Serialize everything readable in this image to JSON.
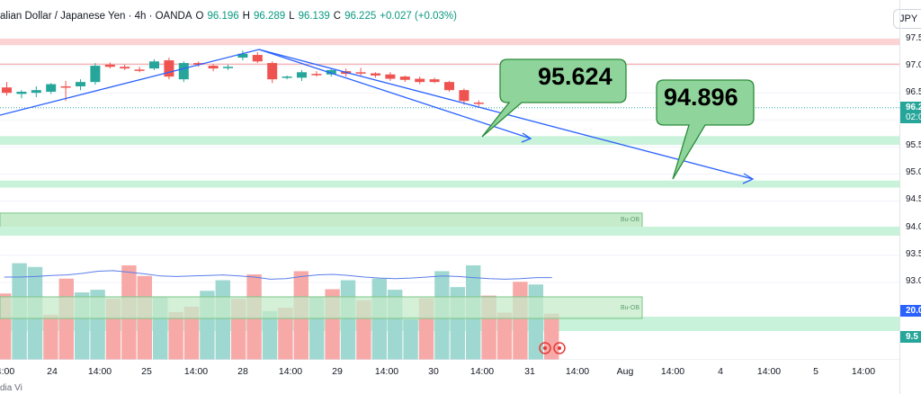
{
  "header": {
    "symbol": "alian Dollar / Japanese Yen · 4h · OANDA",
    "o_label": "O",
    "o_value": "96.196",
    "h_label": "H",
    "h_value": "96.289",
    "l_label": "L",
    "l_value": "96.139",
    "c_label": "C",
    "c_value": "96.225",
    "change": "+0.027 (+0.03%)"
  },
  "currency_tab": "JPY",
  "colors": {
    "up": "#26a69a",
    "down": "#ef5350",
    "trend": "#2962ff",
    "zone": "#a9e9c4",
    "box": "#8fd49a",
    "resistance": "#f7b6b6"
  },
  "price_axis": {
    "ticks": [
      "97.5",
      "97.0",
      "96.5",
      "96.2",
      "95.5",
      "95.0",
      "94.5",
      "94.0",
      "93.5",
      "93.0",
      "20.0",
      "9.5"
    ],
    "badges": [
      {
        "text": "96.2",
        "sub": "02:0",
        "color": "#26a69a"
      },
      {
        "text": "20.0",
        "color": "#2962ff"
      },
      {
        "text": "9.5",
        "color": "#26a69a"
      }
    ]
  },
  "time_axis": [
    "4:00",
    "24",
    "14:00",
    "25",
    "14:00",
    "28",
    "14:00",
    "29",
    "14:00",
    "30",
    "14:00",
    "31",
    "14:00",
    "Aug",
    "14:00",
    "4",
    "14:00",
    "5",
    "14:00"
  ],
  "callouts": [
    {
      "text": "95.624"
    },
    {
      "text": "94.896"
    }
  ],
  "zone_labels": [
    "Bu-OB",
    "Bu-OB"
  ],
  "bottom_text": "dia Vi",
  "chart_data": {
    "type": "candlestick",
    "timeframe": "4h",
    "candles": [
      {
        "o": 96.6,
        "h": 96.7,
        "l": 96.45,
        "c": 96.5
      },
      {
        "o": 96.48,
        "h": 96.55,
        "l": 96.4,
        "c": 96.52
      },
      {
        "o": 96.5,
        "h": 96.62,
        "l": 96.42,
        "c": 96.55
      },
      {
        "o": 96.52,
        "h": 96.68,
        "l": 96.48,
        "c": 96.66
      },
      {
        "o": 96.62,
        "h": 96.72,
        "l": 96.35,
        "c": 96.6
      },
      {
        "o": 96.62,
        "h": 96.75,
        "l": 96.55,
        "c": 96.7
      },
      {
        "o": 96.7,
        "h": 97.05,
        "l": 96.65,
        "c": 97.0
      },
      {
        "o": 97.02,
        "h": 97.06,
        "l": 96.95,
        "c": 96.98
      },
      {
        "o": 96.98,
        "h": 97.02,
        "l": 96.92,
        "c": 96.95
      },
      {
        "o": 96.93,
        "h": 96.98,
        "l": 96.88,
        "c": 96.92
      },
      {
        "o": 96.95,
        "h": 97.12,
        "l": 96.92,
        "c": 97.08
      },
      {
        "o": 97.1,
        "h": 97.15,
        "l": 96.75,
        "c": 96.8
      },
      {
        "o": 96.75,
        "h": 97.08,
        "l": 96.7,
        "c": 97.05
      },
      {
        "o": 97.05,
        "h": 97.08,
        "l": 96.98,
        "c": 97.02
      },
      {
        "o": 97.0,
        "h": 97.03,
        "l": 96.9,
        "c": 96.95
      },
      {
        "o": 96.98,
        "h": 97.02,
        "l": 96.92,
        "c": 96.98
      },
      {
        "o": 97.15,
        "h": 97.28,
        "l": 97.1,
        "c": 97.22
      },
      {
        "o": 97.2,
        "h": 97.25,
        "l": 97.05,
        "c": 97.08
      },
      {
        "o": 97.05,
        "h": 97.08,
        "l": 96.68,
        "c": 96.75
      },
      {
        "o": 96.78,
        "h": 96.82,
        "l": 96.75,
        "c": 96.8
      },
      {
        "o": 96.78,
        "h": 96.92,
        "l": 96.72,
        "c": 96.88
      },
      {
        "o": 96.85,
        "h": 96.9,
        "l": 96.8,
        "c": 96.84
      },
      {
        "o": 96.84,
        "h": 96.95,
        "l": 96.8,
        "c": 96.92
      },
      {
        "o": 96.9,
        "h": 96.95,
        "l": 96.8,
        "c": 96.85
      },
      {
        "o": 96.88,
        "h": 96.96,
        "l": 96.82,
        "c": 96.87
      },
      {
        "o": 96.86,
        "h": 96.88,
        "l": 96.78,
        "c": 96.82
      },
      {
        "o": 96.84,
        "h": 96.88,
        "l": 96.72,
        "c": 96.76
      },
      {
        "o": 96.8,
        "h": 96.82,
        "l": 96.7,
        "c": 96.74
      },
      {
        "o": 96.76,
        "h": 96.8,
        "l": 96.66,
        "c": 96.7
      },
      {
        "o": 96.75,
        "h": 96.78,
        "l": 96.68,
        "c": 96.7
      },
      {
        "o": 96.7,
        "h": 96.72,
        "l": 96.52,
        "c": 96.55
      },
      {
        "o": 96.55,
        "h": 96.58,
        "l": 96.28,
        "c": 96.35
      },
      {
        "o": 96.32,
        "h": 96.36,
        "l": 96.25,
        "c": 96.3
      }
    ],
    "volume_left_candles": [
      12.5,
      18.2,
      17.5,
      8.5,
      15.3,
      12.7,
      13.2,
      11.5,
      17.8,
      15.8,
      11.8,
      9.0,
      10.0,
      13.0,
      15.0,
      11.5,
      16.1,
      9.2,
      9.8,
      16.7,
      11.9,
      13.3,
      15.0,
      11.2,
      15.3,
      13.2,
      7.6,
      11.6,
      16.7,
      13.7,
      17.8,
      12.1,
      8.9,
      14.7,
      14.2,
      8.7
    ],
    "volume_ma": [
      13.9,
      13.9,
      14.0,
      14.2,
      14.3,
      14.6,
      15.0,
      15.1,
      14.8,
      14.5,
      14.1,
      14.0,
      14.1,
      14.2,
      14.3,
      14.1,
      13.9,
      13.5,
      13.6,
      14.0,
      14.3,
      14.4,
      14.2,
      13.9,
      13.7,
      13.6,
      13.7,
      13.9,
      14.1,
      14.0,
      13.8,
      13.6,
      13.5,
      13.6,
      13.8,
      13.8
    ],
    "levels": {
      "resistance_zone": [
        97.38,
        97.5
      ],
      "resistance_line": 97.03,
      "support_zone_1": [
        95.54,
        95.7
      ],
      "support_zone_2": [
        94.75,
        94.88
      ],
      "bullish_ob_1": [
        94.0,
        94.28
      ],
      "bullish_ob_2_volume": "lower panel",
      "current_price": 96.225
    },
    "targets": [
      95.624,
      94.896
    ],
    "annotations": [
      "95.624",
      "94.896",
      "Bu-OB",
      "Bu-OB"
    ]
  }
}
